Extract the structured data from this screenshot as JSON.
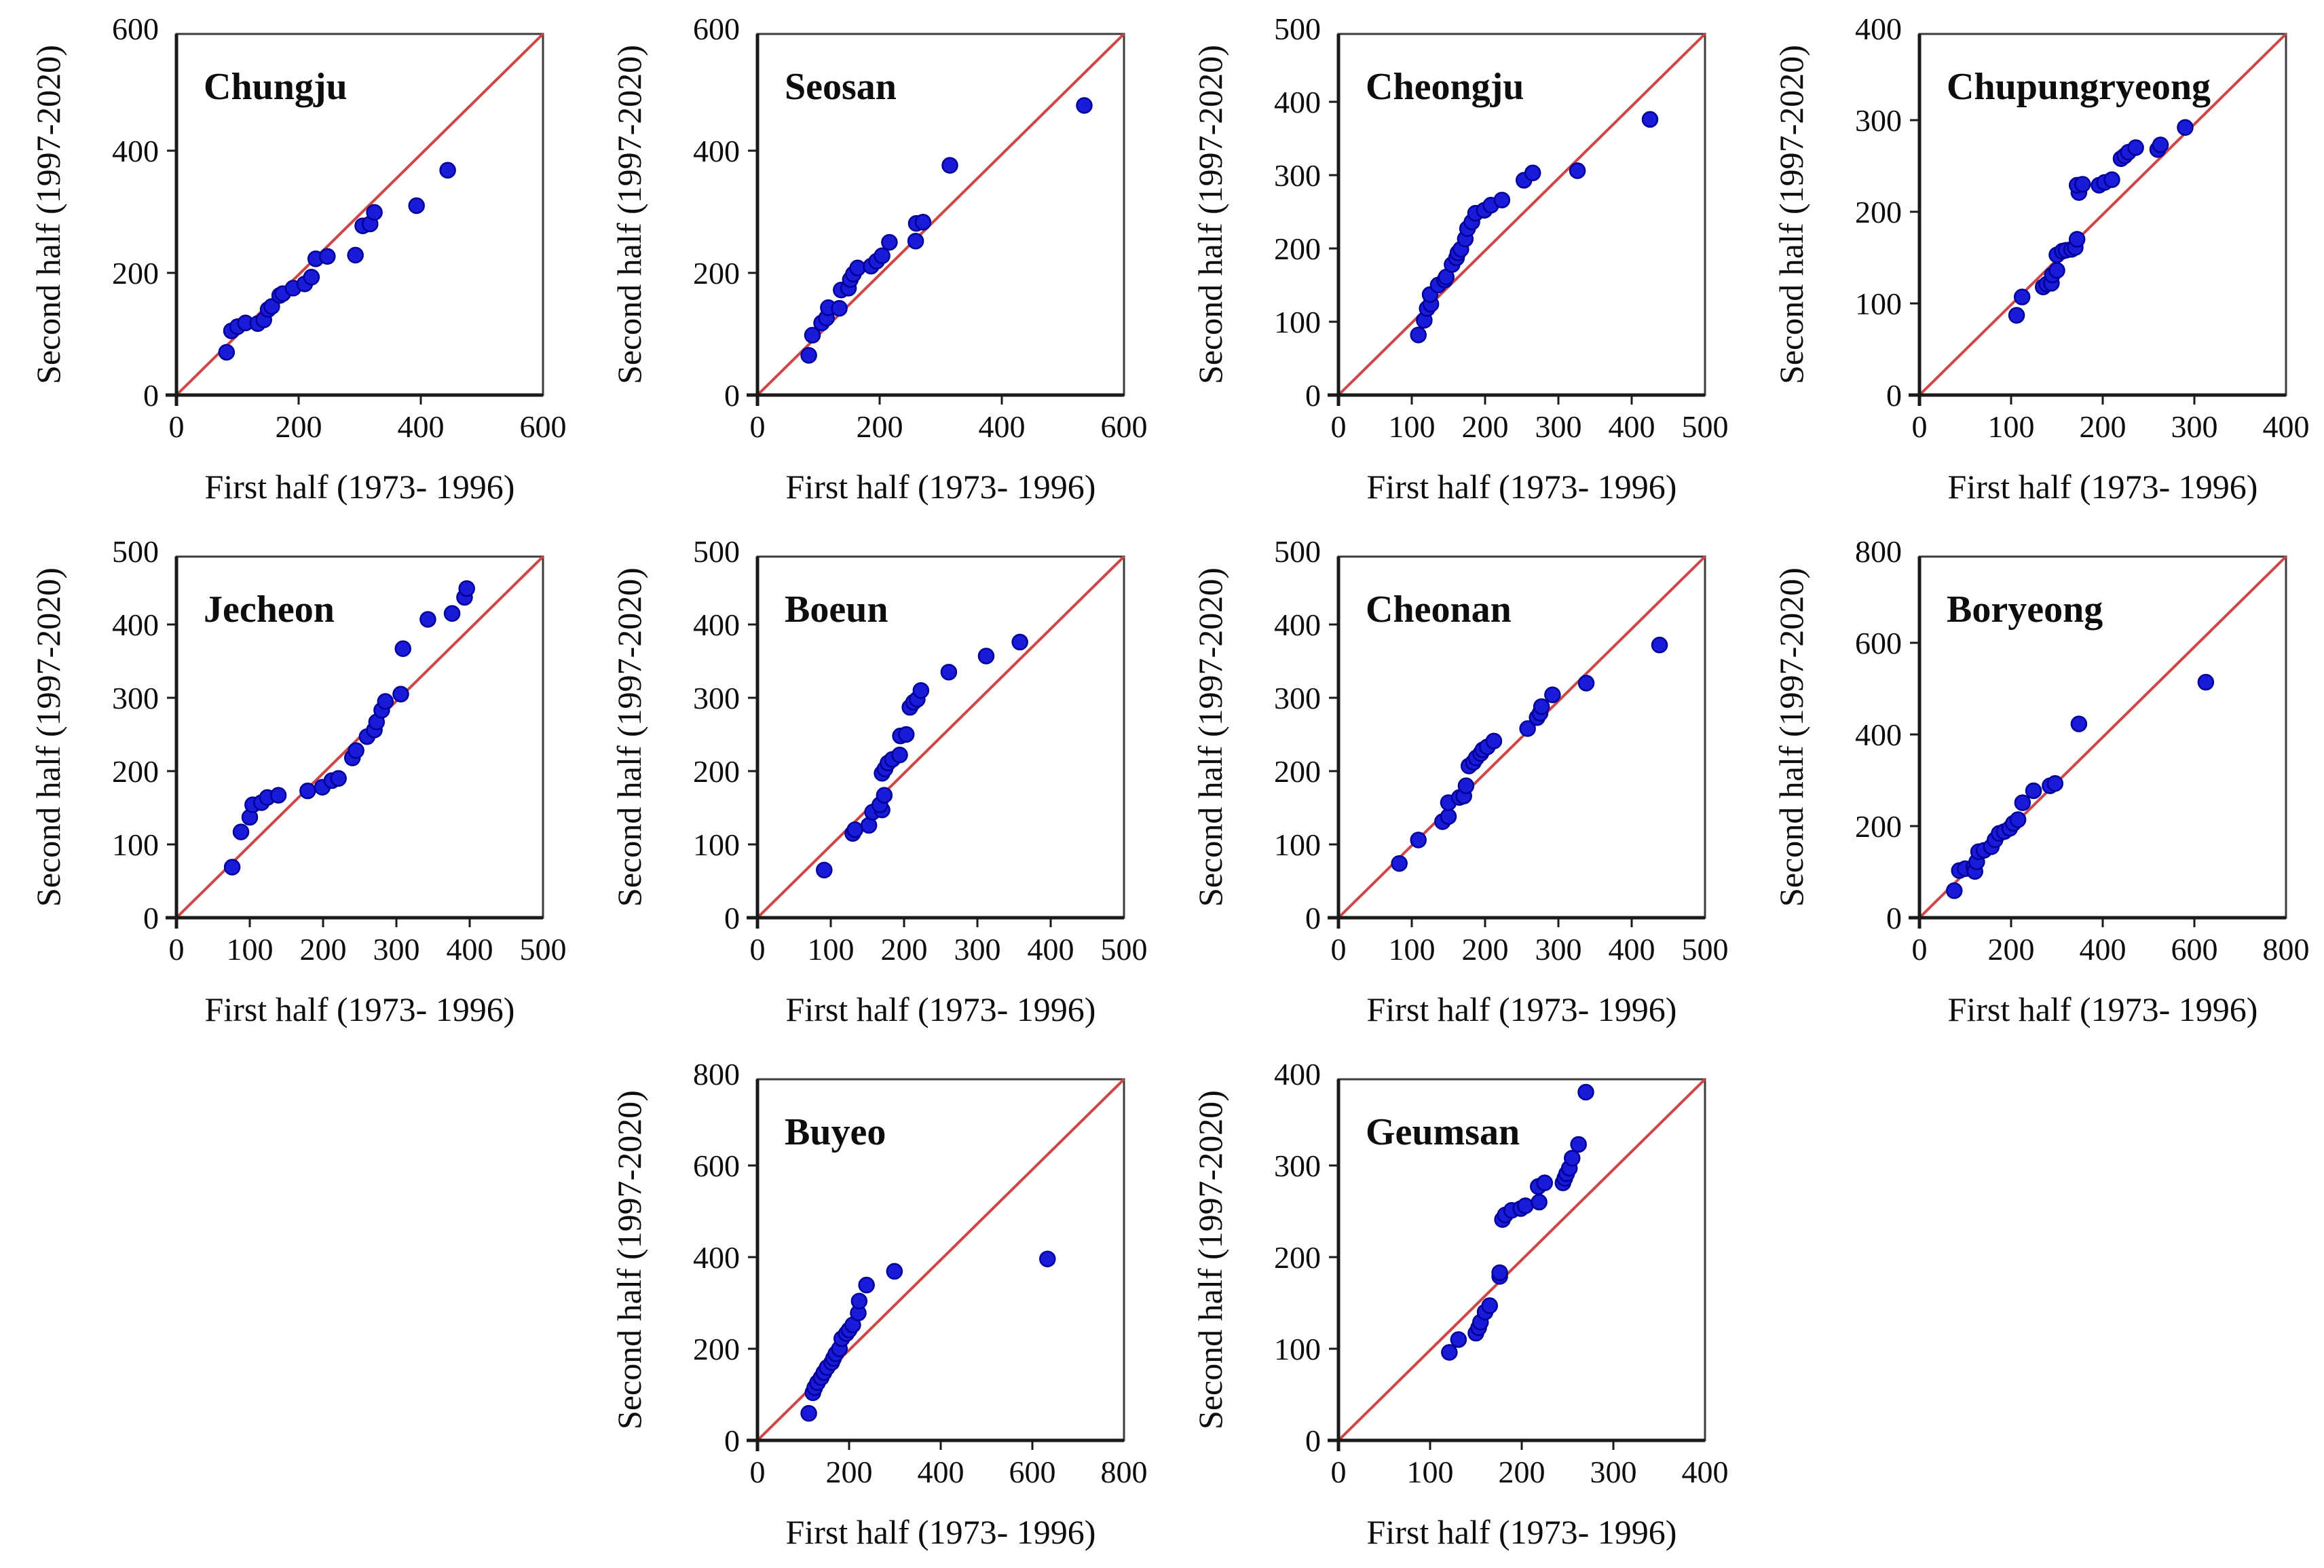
{
  "figure": {
    "x_axis_label": "First half (1973- 1996)",
    "y_axis_label": "Second half (1997-2020)",
    "point_color": "#1a1ad9",
    "point_edge_color": "#000099",
    "line_color": "#d04545",
    "axis_color": "#1a1a1a",
    "frame_color": "#3c3c3c",
    "background_color": "#ffffff"
  },
  "chart_data": [
    {
      "type": "scatter",
      "station": "Chungju",
      "row": 0,
      "col": 0,
      "xlim": [
        0,
        600
      ],
      "ylim": [
        0,
        600
      ],
      "xmax": 600,
      "step": 200,
      "xlabel": "First half (1973- 1996)",
      "ylabel": "Second half (1997-2020)",
      "points": [
        [
          82,
          70
        ],
        [
          90,
          105
        ],
        [
          100,
          112
        ],
        [
          113,
          118
        ],
        [
          133,
          117
        ],
        [
          143,
          123
        ],
        [
          150,
          140
        ],
        [
          156,
          145
        ],
        [
          169,
          163
        ],
        [
          174,
          166
        ],
        [
          191,
          175
        ],
        [
          210,
          182
        ],
        [
          221,
          193
        ],
        [
          228,
          223
        ],
        [
          247,
          227
        ],
        [
          293,
          229
        ],
        [
          305,
          277
        ],
        [
          317,
          280
        ],
        [
          324,
          299
        ],
        [
          393,
          310
        ],
        [
          444,
          368
        ]
      ]
    },
    {
      "type": "scatter",
      "station": "Seosan",
      "row": 0,
      "col": 1,
      "xlim": [
        0,
        600
      ],
      "ylim": [
        0,
        600
      ],
      "xmax": 600,
      "step": 200,
      "xlabel": "First half (1973- 1996)",
      "ylabel": "Second half (1997-2020)",
      "points": [
        [
          84,
          65
        ],
        [
          90,
          98
        ],
        [
          105,
          118
        ],
        [
          113,
          126
        ],
        [
          116,
          143
        ],
        [
          134,
          142
        ],
        [
          137,
          172
        ],
        [
          149,
          175
        ],
        [
          152,
          189
        ],
        [
          157,
          198
        ],
        [
          164,
          208
        ],
        [
          186,
          211
        ],
        [
          195,
          219
        ],
        [
          204,
          228
        ],
        [
          216,
          250
        ],
        [
          259,
          252
        ],
        [
          260,
          281
        ],
        [
          271,
          283
        ],
        [
          315,
          376
        ],
        [
          535,
          474
        ]
      ]
    },
    {
      "type": "scatter",
      "station": "Cheongju",
      "row": 0,
      "col": 2,
      "xlim": [
        0,
        500
      ],
      "ylim": [
        0,
        500
      ],
      "xmax": 500,
      "step": 100,
      "xlabel": "First half (1973- 1996)",
      "ylabel": "Second half (1997-2020)",
      "points": [
        [
          109,
          82
        ],
        [
          117,
          102
        ],
        [
          121,
          118
        ],
        [
          126,
          124
        ],
        [
          125,
          137
        ],
        [
          136,
          150
        ],
        [
          145,
          157
        ],
        [
          147,
          161
        ],
        [
          155,
          178
        ],
        [
          161,
          187
        ],
        [
          163,
          194
        ],
        [
          167,
          199
        ],
        [
          173,
          213
        ],
        [
          176,
          227
        ],
        [
          182,
          236
        ],
        [
          187,
          248
        ],
        [
          199,
          252
        ],
        [
          208,
          259
        ],
        [
          223,
          266
        ],
        [
          253,
          293
        ],
        [
          265,
          303
        ],
        [
          326,
          306
        ],
        [
          425,
          376
        ]
      ]
    },
    {
      "type": "scatter",
      "station": "Chupungryeong",
      "row": 0,
      "col": 3,
      "xlim": [
        0,
        400
      ],
      "ylim": [
        0,
        400
      ],
      "xmax": 400,
      "step": 100,
      "xlabel": "First half (1973- 1996)",
      "ylabel": "Second half (1997-2020)",
      "points": [
        [
          106,
          87
        ],
        [
          112,
          107
        ],
        [
          135,
          118
        ],
        [
          139,
          121
        ],
        [
          144,
          122
        ],
        [
          145,
          131
        ],
        [
          150,
          136
        ],
        [
          150,
          153
        ],
        [
          156,
          157
        ],
        [
          160,
          158
        ],
        [
          166,
          159
        ],
        [
          170,
          161
        ],
        [
          172,
          170
        ],
        [
          174,
          221
        ],
        [
          172,
          229
        ],
        [
          178,
          230
        ],
        [
          196,
          229
        ],
        [
          202,
          232
        ],
        [
          210,
          235
        ],
        [
          220,
          258
        ],
        [
          224,
          261
        ],
        [
          228,
          265
        ],
        [
          236,
          270
        ],
        [
          260,
          268
        ],
        [
          263,
          273
        ],
        [
          290,
          292
        ]
      ]
    },
    {
      "type": "scatter",
      "station": "Jecheon",
      "row": 1,
      "col": 0,
      "xlim": [
        0,
        500
      ],
      "ylim": [
        0,
        500
      ],
      "xmax": 500,
      "step": 100,
      "xlabel": "First half (1973- 1996)",
      "ylabel": "Second half (1997-2020)",
      "points": [
        [
          76,
          69
        ],
        [
          88,
          117
        ],
        [
          100,
          137
        ],
        [
          104,
          154
        ],
        [
          116,
          157
        ],
        [
          124,
          164
        ],
        [
          139,
          167
        ],
        [
          179,
          173
        ],
        [
          199,
          178
        ],
        [
          212,
          187
        ],
        [
          221,
          190
        ],
        [
          240,
          218
        ],
        [
          245,
          228
        ],
        [
          260,
          247
        ],
        [
          270,
          256
        ],
        [
          273,
          267
        ],
        [
          280,
          283
        ],
        [
          285,
          295
        ],
        [
          306,
          305
        ],
        [
          309,
          367
        ],
        [
          343,
          407
        ],
        [
          376,
          415
        ],
        [
          393,
          437
        ],
        [
          396,
          449
        ]
      ]
    },
    {
      "type": "scatter",
      "station": "Boeun",
      "row": 1,
      "col": 1,
      "xlim": [
        0,
        500
      ],
      "ylim": [
        0,
        500
      ],
      "xmax": 500,
      "step": 100,
      "xlabel": "First half (1973- 1996)",
      "ylabel": "Second half (1997-2020)",
      "points": [
        [
          91,
          65
        ],
        [
          130,
          115
        ],
        [
          133,
          120
        ],
        [
          152,
          126
        ],
        [
          157,
          144
        ],
        [
          170,
          147
        ],
        [
          167,
          154
        ],
        [
          173,
          167
        ],
        [
          170,
          197
        ],
        [
          174,
          203
        ],
        [
          178,
          211
        ],
        [
          184,
          216
        ],
        [
          194,
          222
        ],
        [
          195,
          248
        ],
        [
          203,
          250
        ],
        [
          208,
          287
        ],
        [
          213,
          294
        ],
        [
          218,
          298
        ],
        [
          223,
          310
        ],
        [
          261,
          335
        ],
        [
          312,
          357
        ],
        [
          358,
          376
        ]
      ]
    },
    {
      "type": "scatter",
      "station": "Cheonan",
      "row": 1,
      "col": 2,
      "xlim": [
        0,
        500
      ],
      "ylim": [
        0,
        500
      ],
      "xmax": 500,
      "step": 100,
      "xlabel": "First half (1973- 1996)",
      "ylabel": "Second half (1997-2020)",
      "points": [
        [
          83,
          74
        ],
        [
          109,
          106
        ],
        [
          142,
          131
        ],
        [
          150,
          138
        ],
        [
          150,
          157
        ],
        [
          165,
          164
        ],
        [
          171,
          166
        ],
        [
          174,
          180
        ],
        [
          178,
          207
        ],
        [
          184,
          212
        ],
        [
          188,
          218
        ],
        [
          194,
          224
        ],
        [
          197,
          229
        ],
        [
          203,
          233
        ],
        [
          212,
          241
        ],
        [
          258,
          258
        ],
        [
          271,
          273
        ],
        [
          275,
          279
        ],
        [
          277,
          288
        ],
        [
          292,
          304
        ],
        [
          338,
          320
        ],
        [
          438,
          372
        ]
      ]
    },
    {
      "type": "scatter",
      "station": "Boryeong",
      "row": 1,
      "col": 3,
      "xlim": [
        0,
        800
      ],
      "ylim": [
        0,
        800
      ],
      "xmax": 800,
      "step": 200,
      "xlabel": "First half (1973- 1996)",
      "ylabel": "Second half (1997-2020)",
      "points": [
        [
          76,
          59
        ],
        [
          87,
          103
        ],
        [
          100,
          107
        ],
        [
          119,
          111
        ],
        [
          121,
          101
        ],
        [
          125,
          122
        ],
        [
          129,
          144
        ],
        [
          141,
          147
        ],
        [
          157,
          155
        ],
        [
          165,
          170
        ],
        [
          174,
          184
        ],
        [
          185,
          188
        ],
        [
          197,
          195
        ],
        [
          205,
          206
        ],
        [
          215,
          214
        ],
        [
          225,
          251
        ],
        [
          249,
          277
        ],
        [
          285,
          288
        ],
        [
          296,
          293
        ],
        [
          348,
          423
        ],
        [
          625,
          514
        ]
      ]
    },
    {
      "type": "scatter",
      "station": "Buyeo",
      "row": 2,
      "col": 1,
      "xlim": [
        0,
        800
      ],
      "ylim": [
        0,
        800
      ],
      "xmax": 800,
      "step": 200,
      "xlabel": "First half (1973- 1996)",
      "ylabel": "Second half (1997-2020)",
      "points": [
        [
          112,
          59
        ],
        [
          121,
          104
        ],
        [
          125,
          115
        ],
        [
          131,
          126
        ],
        [
          139,
          137
        ],
        [
          145,
          148
        ],
        [
          152,
          159
        ],
        [
          162,
          170
        ],
        [
          166,
          179
        ],
        [
          171,
          189
        ],
        [
          179,
          200
        ],
        [
          184,
          222
        ],
        [
          194,
          233
        ],
        [
          200,
          241
        ],
        [
          208,
          252
        ],
        [
          220,
          278
        ],
        [
          222,
          304
        ],
        [
          238,
          339
        ],
        [
          299,
          369
        ],
        [
          633,
          396
        ]
      ]
    },
    {
      "type": "scatter",
      "station": "Geumsan",
      "row": 2,
      "col": 2,
      "xlim": [
        0,
        400
      ],
      "ylim": [
        0,
        400
      ],
      "xmax": 400,
      "step": 100,
      "xlabel": "First half (1973- 1996)",
      "ylabel": "Second half (1997-2020)",
      "points": [
        [
          121,
          96
        ],
        [
          131,
          110
        ],
        [
          150,
          117
        ],
        [
          153,
          123
        ],
        [
          155,
          129
        ],
        [
          160,
          140
        ],
        [
          165,
          147
        ],
        [
          176,
          179
        ],
        [
          176,
          183
        ],
        [
          179,
          241
        ],
        [
          182,
          246
        ],
        [
          189,
          251
        ],
        [
          199,
          253
        ],
        [
          204,
          256
        ],
        [
          219,
          260
        ],
        [
          218,
          277
        ],
        [
          225,
          281
        ],
        [
          245,
          281
        ],
        [
          247,
          286
        ],
        [
          249,
          291
        ],
        [
          252,
          297
        ],
        [
          255,
          308
        ],
        [
          262,
          323
        ],
        [
          270,
          380
        ]
      ]
    }
  ]
}
